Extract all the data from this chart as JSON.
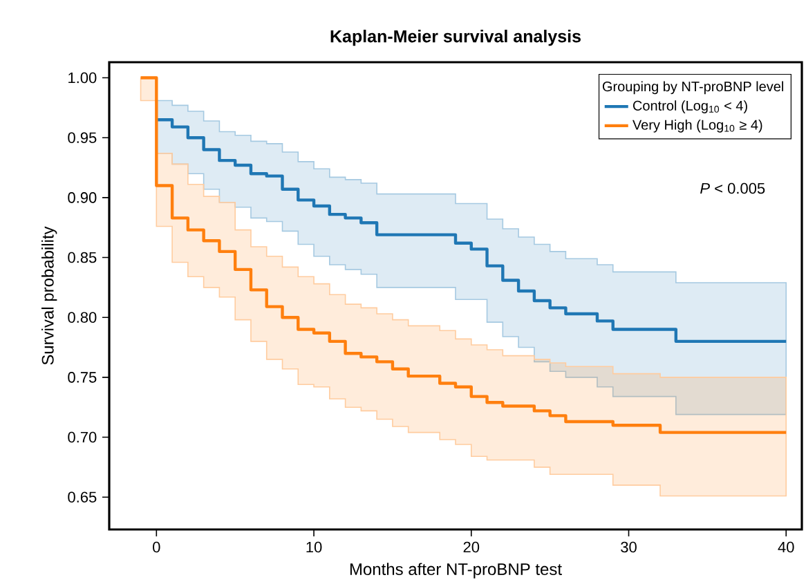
{
  "chart_data": {
    "type": "step",
    "title": "Kaplan-Meier survival analysis",
    "xlabel": "Months after NT-proBNP test",
    "ylabel": "Survival probability",
    "legend_title": "Grouping by NT-proBNP level",
    "legend": "top right",
    "annotations": [
      "*P* < 0.005"
    ],
    "xlim": [
      -3,
      41
    ],
    "ylim": [
      0.623,
      1.013
    ],
    "xticks": [
      0,
      10,
      20,
      30,
      40
    ],
    "yticks": [
      {
        "value": 0.65,
        "label": "0.65"
      },
      {
        "value": 0.7,
        "label": "0.70"
      },
      {
        "value": 0.75,
        "label": "0.75"
      },
      {
        "value": 0.8,
        "label": "0.80"
      },
      {
        "value": 0.85,
        "label": "0.85"
      },
      {
        "value": 0.9,
        "label": "0.90"
      },
      {
        "value": 0.95,
        "label": "0.95"
      },
      {
        "value": 1.0,
        "label": "1.00"
      }
    ],
    "series": [
      {
        "name": "Control (Log$_{10}$ < 4)",
        "color": "#1f77b4",
        "x": [
          -1,
          0,
          1,
          2,
          3,
          4,
          5,
          6,
          7,
          8,
          9,
          10,
          11,
          12,
          13,
          14,
          15,
          16,
          18,
          19,
          20,
          21,
          22,
          23,
          24,
          25,
          26,
          28,
          29,
          32,
          33,
          40
        ],
        "values": [
          null,
          0.965,
          0.959,
          0.95,
          0.94,
          0.931,
          0.927,
          0.92,
          0.918,
          0.907,
          0.898,
          0.893,
          0.886,
          0.883,
          0.879,
          0.869,
          0.869,
          0.869,
          0.869,
          0.862,
          0.857,
          0.843,
          0.831,
          0.822,
          0.814,
          0.808,
          0.803,
          0.797,
          0.79,
          0.79,
          0.78,
          0.78
        ],
        "upper": [
          1.0,
          0.981,
          0.977,
          0.972,
          0.964,
          0.955,
          0.952,
          0.947,
          0.945,
          0.938,
          0.93,
          0.924,
          0.917,
          0.915,
          0.912,
          0.903,
          0.903,
          0.903,
          0.903,
          0.895,
          0.895,
          0.882,
          0.874,
          0.867,
          0.861,
          0.855,
          0.849,
          0.844,
          0.838,
          0.838,
          0.829,
          0.829
        ],
        "lower": [
          1.0,
          0.937,
          0.928,
          0.92,
          0.907,
          0.896,
          0.892,
          0.883,
          0.88,
          0.872,
          0.861,
          0.851,
          0.844,
          0.84,
          0.836,
          0.825,
          0.825,
          0.825,
          0.825,
          0.815,
          0.815,
          0.796,
          0.784,
          0.775,
          0.763,
          0.755,
          0.75,
          0.742,
          0.734,
          0.734,
          0.719,
          0.719
        ]
      },
      {
        "name": "Very High (Log$_{10}$ ≥ 4)",
        "color": "#ff7f0e",
        "x": [
          -1,
          0,
          1,
          2,
          3,
          4,
          5,
          6,
          7,
          8,
          9,
          10,
          11,
          12,
          13,
          14,
          15,
          16,
          18,
          19,
          20,
          21,
          22,
          23,
          24,
          25,
          26,
          28,
          29,
          32,
          33,
          40
        ],
        "values": [
          1.0,
          0.91,
          0.883,
          0.873,
          0.864,
          0.855,
          0.84,
          0.823,
          0.809,
          0.8,
          0.79,
          0.787,
          0.78,
          0.77,
          0.767,
          0.763,
          0.757,
          0.751,
          0.745,
          0.742,
          0.734,
          0.729,
          0.726,
          0.726,
          0.722,
          0.718,
          0.713,
          0.713,
          0.71,
          0.704,
          0.704,
          0.704
        ],
        "upper": [
          1.0,
          0.937,
          0.928,
          0.911,
          0.901,
          0.896,
          0.873,
          0.859,
          0.851,
          0.842,
          0.834,
          0.828,
          0.819,
          0.811,
          0.808,
          0.803,
          0.798,
          0.793,
          0.789,
          0.782,
          0.777,
          0.773,
          0.768,
          0.768,
          0.765,
          0.762,
          0.759,
          0.759,
          0.753,
          0.75,
          0.75,
          0.75
        ],
        "lower": [
          0.981,
          0.876,
          0.846,
          0.834,
          0.825,
          0.817,
          0.798,
          0.78,
          0.765,
          0.757,
          0.744,
          0.742,
          0.732,
          0.725,
          0.722,
          0.715,
          0.709,
          0.704,
          0.698,
          0.694,
          0.684,
          0.681,
          0.681,
          0.681,
          0.675,
          0.669,
          0.669,
          0.669,
          0.66,
          0.651,
          0.651,
          0.651
        ]
      }
    ]
  }
}
